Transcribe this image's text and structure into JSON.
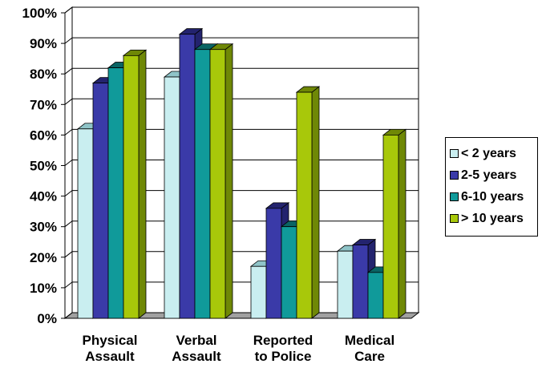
{
  "chart_data": {
    "type": "bar",
    "title": "",
    "xlabel": "",
    "ylabel": "",
    "categories": [
      [
        "Physical",
        "Assault"
      ],
      [
        "Verbal",
        "Assault"
      ],
      [
        "Reported",
        "to Police"
      ],
      [
        "Medical",
        "Care"
      ]
    ],
    "series": [
      {
        "name": "< 2 years",
        "color": "#c9eef0",
        "side": "#8fc4c8",
        "values": [
          62,
          79,
          17,
          22
        ]
      },
      {
        "name": "2-5 years",
        "color": "#3a3aa8",
        "side": "#23236e",
        "values": [
          77,
          93,
          36,
          24
        ]
      },
      {
        "name": "6-10 years",
        "color": "#109a9a",
        "side": "#0a6464",
        "values": [
          82,
          88,
          30,
          15
        ]
      },
      {
        "name": "> 10 years",
        "color": "#a8c80a",
        "side": "#6f8806",
        "values": [
          86,
          88,
          74,
          60
        ]
      }
    ],
    "ylim": [
      0,
      100
    ],
    "yticks": [
      0,
      10,
      20,
      30,
      40,
      50,
      60,
      70,
      80,
      90,
      100
    ],
    "ytick_format": "%",
    "grid": true,
    "legend_position": "right"
  }
}
